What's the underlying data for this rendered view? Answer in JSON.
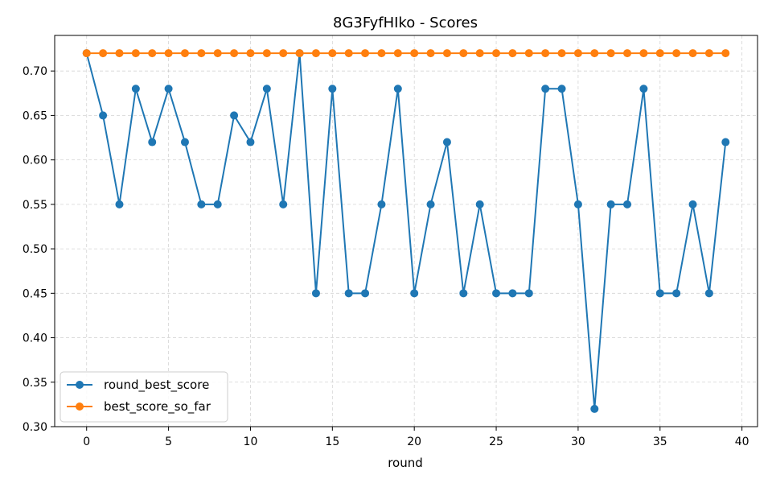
{
  "chart_data": {
    "type": "line",
    "title": "8G3FyfHIko - Scores",
    "xlabel": "round",
    "ylabel": "",
    "xlim": [
      -1.95,
      40.95
    ],
    "ylim": [
      0.3,
      0.74
    ],
    "xticks": [
      0,
      5,
      10,
      15,
      20,
      25,
      30,
      35,
      40
    ],
    "yticks": [
      0.3,
      0.35,
      0.4,
      0.45,
      0.5,
      0.55,
      0.6,
      0.65,
      0.7
    ],
    "ytick_labels": [
      "0.30",
      "0.35",
      "0.40",
      "0.45",
      "0.50",
      "0.55",
      "0.60",
      "0.65",
      "0.70"
    ],
    "grid": true,
    "legend_position": "bottom-left",
    "x": [
      0,
      1,
      2,
      3,
      4,
      5,
      6,
      7,
      8,
      9,
      10,
      11,
      12,
      13,
      14,
      15,
      16,
      17,
      18,
      19,
      20,
      21,
      22,
      23,
      24,
      25,
      26,
      27,
      28,
      29,
      30,
      31,
      32,
      33,
      34,
      35,
      36,
      37,
      38,
      39
    ],
    "series": [
      {
        "name": "round_best_score",
        "color": "#1f77b4",
        "values": [
          0.72,
          0.65,
          0.55,
          0.68,
          0.62,
          0.68,
          0.62,
          0.55,
          0.55,
          0.65,
          0.62,
          0.68,
          0.55,
          0.72,
          0.45,
          0.68,
          0.45,
          0.45,
          0.55,
          0.68,
          0.45,
          0.55,
          0.62,
          0.45,
          0.55,
          0.45,
          0.45,
          0.45,
          0.68,
          0.68,
          0.55,
          0.32,
          0.55,
          0.55,
          0.68,
          0.45,
          0.45,
          0.55,
          0.45,
          0.62
        ]
      },
      {
        "name": "best_score_so_far",
        "color": "#ff7f0e",
        "values": [
          0.72,
          0.72,
          0.72,
          0.72,
          0.72,
          0.72,
          0.72,
          0.72,
          0.72,
          0.72,
          0.72,
          0.72,
          0.72,
          0.72,
          0.72,
          0.72,
          0.72,
          0.72,
          0.72,
          0.72,
          0.72,
          0.72,
          0.72,
          0.72,
          0.72,
          0.72,
          0.72,
          0.72,
          0.72,
          0.72,
          0.72,
          0.72,
          0.72,
          0.72,
          0.72,
          0.72,
          0.72,
          0.72,
          0.72,
          0.72
        ]
      }
    ]
  }
}
